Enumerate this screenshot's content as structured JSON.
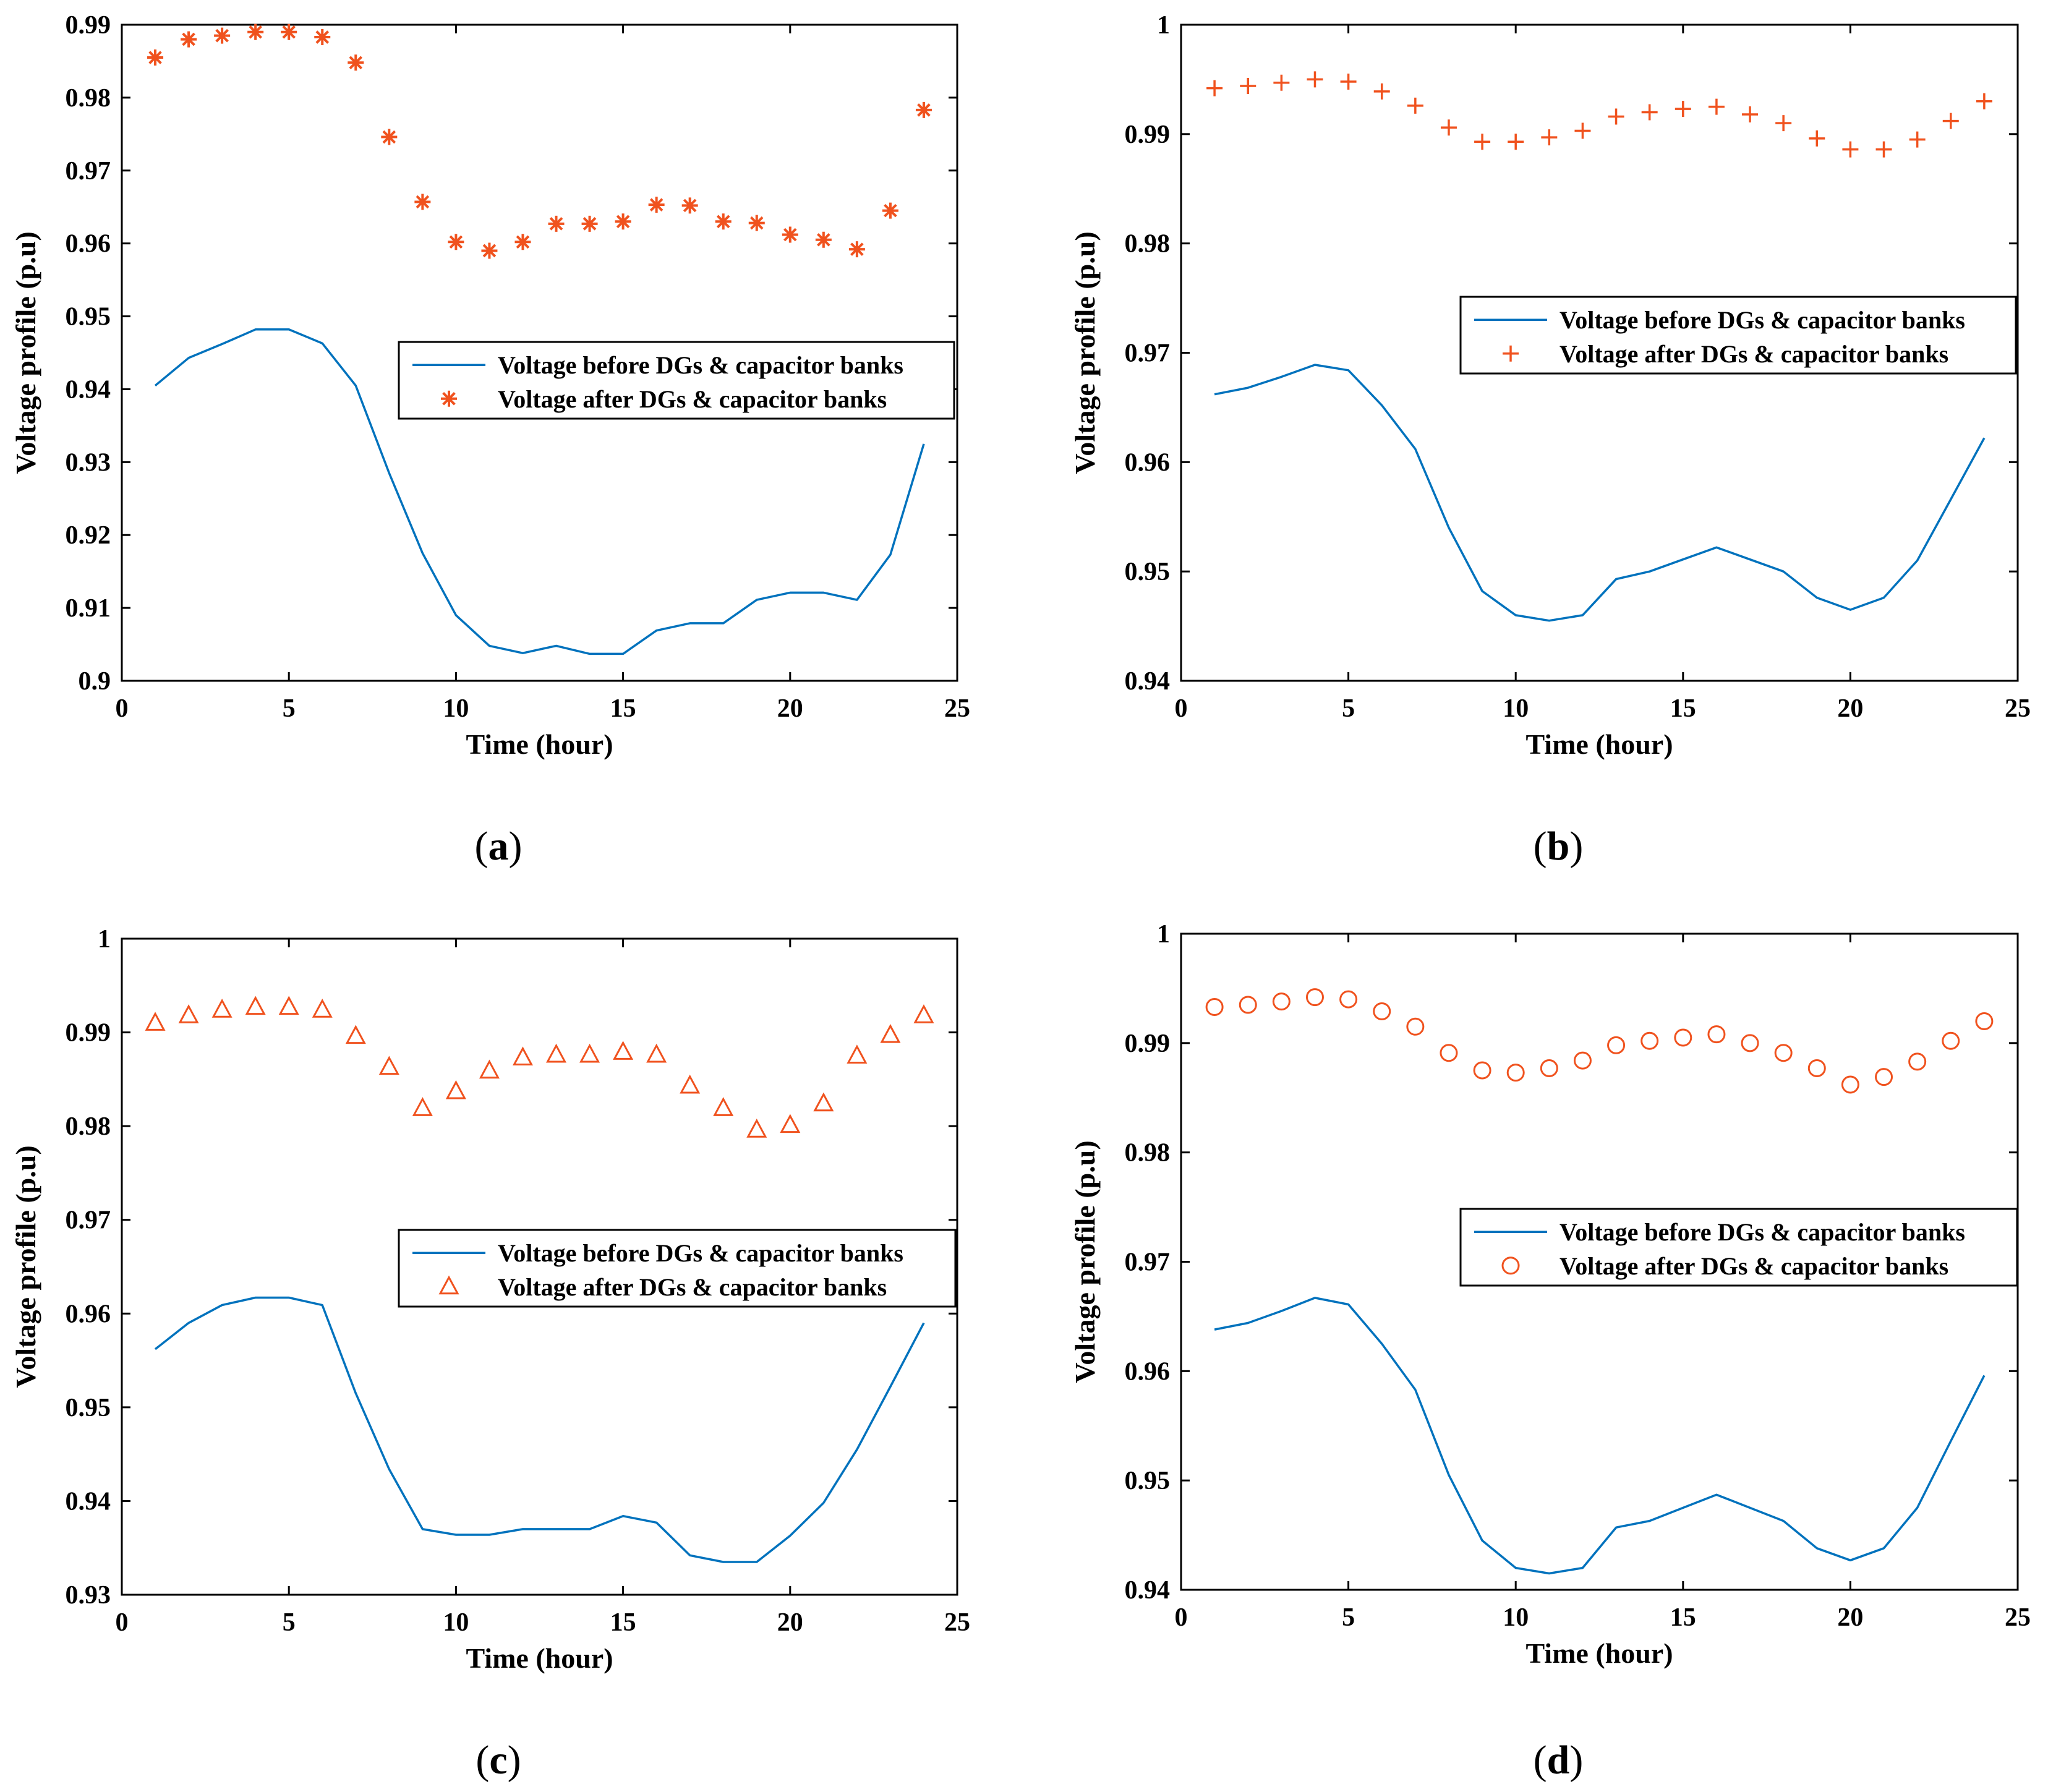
{
  "colors": {
    "before": "#0072BD",
    "after": "#F0521E",
    "axis": "#000000"
  },
  "chart_data": [
    {
      "panel": "a",
      "type": "line",
      "xlabel": "Time (hour)",
      "ylabel": "Voltage profile (p.u)",
      "xlim": [
        0,
        25
      ],
      "ylim": [
        0.9,
        0.99
      ],
      "xticks": [
        0,
        5,
        10,
        15,
        20,
        25
      ],
      "yticks": [
        0.9,
        0.91,
        0.92,
        0.93,
        0.94,
        0.95,
        0.96,
        0.97,
        0.98,
        0.99
      ],
      "ytick_labels": [
        "0.9",
        "0.91",
        "0.92",
        "0.93",
        "0.94",
        "0.95",
        "0.96",
        "0.97",
        "0.98",
        "0.99"
      ],
      "x": [
        1,
        2,
        3,
        4,
        5,
        6,
        7,
        8,
        9,
        10,
        11,
        12,
        13,
        14,
        15,
        16,
        17,
        18,
        19,
        20,
        21,
        22,
        23,
        24
      ],
      "series": [
        {
          "name": "Voltage before DGs & capacitor banks",
          "style": "line",
          "values": [
            0.9405,
            0.9443,
            0.9462,
            0.9482,
            0.9482,
            0.9463,
            0.9405,
            0.9285,
            0.9175,
            0.909,
            0.9048,
            0.9038,
            0.9048,
            0.9037,
            0.9037,
            0.9069,
            0.9079,
            0.9079,
            0.9111,
            0.9121,
            0.9121,
            0.9111,
            0.9173,
            0.9325
          ]
        },
        {
          "name": "Voltage after DGs & capacitor banks",
          "style": "marker",
          "marker": "asterisk",
          "values": [
            0.9855,
            0.988,
            0.9885,
            0.989,
            0.989,
            0.9883,
            0.9848,
            0.9746,
            0.9657,
            0.9602,
            0.959,
            0.9602,
            0.9627,
            0.9627,
            0.963,
            0.9653,
            0.9652,
            0.963,
            0.9628,
            0.9612,
            0.9605,
            0.9592,
            0.9645,
            0.9783
          ]
        }
      ],
      "legend": [
        "Voltage before DGs & capacitor banks",
        "Voltage after DGs & capacitor banks"
      ],
      "legend_position": "middle-right"
    },
    {
      "panel": "b",
      "type": "line",
      "xlabel": "Time (hour)",
      "ylabel": "Voltage profile (p.u)",
      "xlim": [
        0,
        25
      ],
      "ylim": [
        0.94,
        1.0
      ],
      "xticks": [
        0,
        5,
        10,
        15,
        20,
        25
      ],
      "yticks": [
        0.94,
        0.95,
        0.96,
        0.97,
        0.98,
        0.99,
        1.0
      ],
      "ytick_labels": [
        "0.94",
        "0.95",
        "0.96",
        "0.97",
        "0.98",
        "0.99",
        "1"
      ],
      "x": [
        1,
        2,
        3,
        4,
        5,
        6,
        7,
        8,
        9,
        10,
        11,
        12,
        13,
        14,
        15,
        16,
        17,
        18,
        19,
        20,
        21,
        22,
        23,
        24
      ],
      "series": [
        {
          "name": "Voltage before DGs & capacitor banks",
          "style": "line",
          "values": [
            0.9662,
            0.9668,
            0.9678,
            0.9689,
            0.9684,
            0.9652,
            0.9612,
            0.954,
            0.9482,
            0.946,
            0.9455,
            0.946,
            0.9493,
            0.95,
            0.9511,
            0.9522,
            0.9511,
            0.95,
            0.9476,
            0.9465,
            0.9476,
            0.951,
            0.9566,
            0.9622
          ]
        },
        {
          "name": "Voltage after DGs & capacitor banks",
          "style": "marker",
          "marker": "plus",
          "values": [
            0.9942,
            0.9944,
            0.9947,
            0.995,
            0.9948,
            0.9939,
            0.9926,
            0.9906,
            0.9893,
            0.9893,
            0.9897,
            0.9903,
            0.9916,
            0.992,
            0.9923,
            0.9925,
            0.9918,
            0.991,
            0.9896,
            0.9886,
            0.9886,
            0.9895,
            0.9912,
            0.993
          ]
        }
      ],
      "legend": [
        "Voltage before DGs & capacitor banks",
        "Voltage after DGs & capacitor banks"
      ],
      "legend_position": "middle-right"
    },
    {
      "panel": "c",
      "type": "line",
      "xlabel": "Time (hour)",
      "ylabel": "Voltage profile (p.u)",
      "xlim": [
        0,
        25
      ],
      "ylim": [
        0.93,
        1.0
      ],
      "xticks": [
        0,
        5,
        10,
        15,
        20,
        25
      ],
      "yticks": [
        0.93,
        0.94,
        0.95,
        0.96,
        0.97,
        0.98,
        0.99,
        1.0
      ],
      "ytick_labels": [
        "0.93",
        "0.94",
        "0.95",
        "0.96",
        "0.97",
        "0.98",
        "0.99",
        "1"
      ],
      "x": [
        1,
        2,
        3,
        4,
        5,
        6,
        7,
        8,
        9,
        10,
        11,
        12,
        13,
        14,
        15,
        16,
        17,
        18,
        19,
        20,
        21,
        22,
        23,
        24
      ],
      "series": [
        {
          "name": "Voltage before DGs & capacitor banks",
          "style": "line",
          "values": [
            0.9562,
            0.959,
            0.9609,
            0.9617,
            0.9617,
            0.9609,
            0.9515,
            0.9434,
            0.937,
            0.9364,
            0.9364,
            0.937,
            0.937,
            0.937,
            0.9384,
            0.9377,
            0.9342,
            0.9335,
            0.9335,
            0.9363,
            0.9398,
            0.9455,
            0.9522,
            0.959
          ]
        },
        {
          "name": "Voltage after DGs & capacitor banks",
          "style": "marker",
          "marker": "triangle",
          "values": [
            0.991,
            0.9918,
            0.9924,
            0.9927,
            0.9927,
            0.9924,
            0.9896,
            0.9863,
            0.9819,
            0.9837,
            0.9859,
            0.9873,
            0.9876,
            0.9876,
            0.9879,
            0.9876,
            0.9843,
            0.9819,
            0.9796,
            0.9801,
            0.9824,
            0.9875,
            0.9897,
            0.9918
          ]
        }
      ],
      "legend": [
        "Voltage before DGs & capacitor banks",
        "Voltage after DGs & capacitor banks"
      ],
      "legend_position": "middle-right"
    },
    {
      "panel": "d",
      "type": "line",
      "xlabel": "Time (hour)",
      "ylabel": "Voltage profile (p.u)",
      "xlim": [
        0,
        25
      ],
      "ylim": [
        0.94,
        1.0
      ],
      "xticks": [
        0,
        5,
        10,
        15,
        20,
        25
      ],
      "yticks": [
        0.94,
        0.95,
        0.96,
        0.97,
        0.98,
        0.99,
        1.0
      ],
      "ytick_labels": [
        "0.94",
        "0.95",
        "0.96",
        "0.97",
        "0.98",
        "0.99",
        "1"
      ],
      "x": [
        1,
        2,
        3,
        4,
        5,
        6,
        7,
        8,
        9,
        10,
        11,
        12,
        13,
        14,
        15,
        16,
        17,
        18,
        19,
        20,
        21,
        22,
        23,
        24
      ],
      "series": [
        {
          "name": "Voltage before DGs & capacitor banks",
          "style": "line",
          "values": [
            0.9638,
            0.9644,
            0.9655,
            0.9667,
            0.9661,
            0.9625,
            0.9583,
            0.9505,
            0.9445,
            0.942,
            0.9415,
            0.942,
            0.9457,
            0.9463,
            0.9475,
            0.9487,
            0.9475,
            0.9463,
            0.9438,
            0.9427,
            0.9438,
            0.9475,
            0.9536,
            0.9596
          ]
        },
        {
          "name": "Voltage after DGs & capacitor banks",
          "style": "marker",
          "marker": "circle",
          "values": [
            0.9933,
            0.9935,
            0.9938,
            0.9942,
            0.994,
            0.9929,
            0.9915,
            0.9891,
            0.9875,
            0.9873,
            0.9877,
            0.9884,
            0.9898,
            0.9902,
            0.9905,
            0.9908,
            0.99,
            0.9891,
            0.9877,
            0.9862,
            0.9869,
            0.9883,
            0.9902,
            0.992
          ]
        }
      ],
      "legend": [
        "Voltage before DGs & capacitor banks",
        "Voltage after DGs & capacitor banks"
      ],
      "legend_position": "middle-right"
    }
  ],
  "panel_labels": [
    {
      "open": "(",
      "letter": "a",
      "close": ")"
    },
    {
      "open": "(",
      "letter": "b",
      "close": ")"
    },
    {
      "open": "(",
      "letter": "c",
      "close": ")"
    },
    {
      "open": "(",
      "letter": "d",
      "close": ")"
    }
  ]
}
